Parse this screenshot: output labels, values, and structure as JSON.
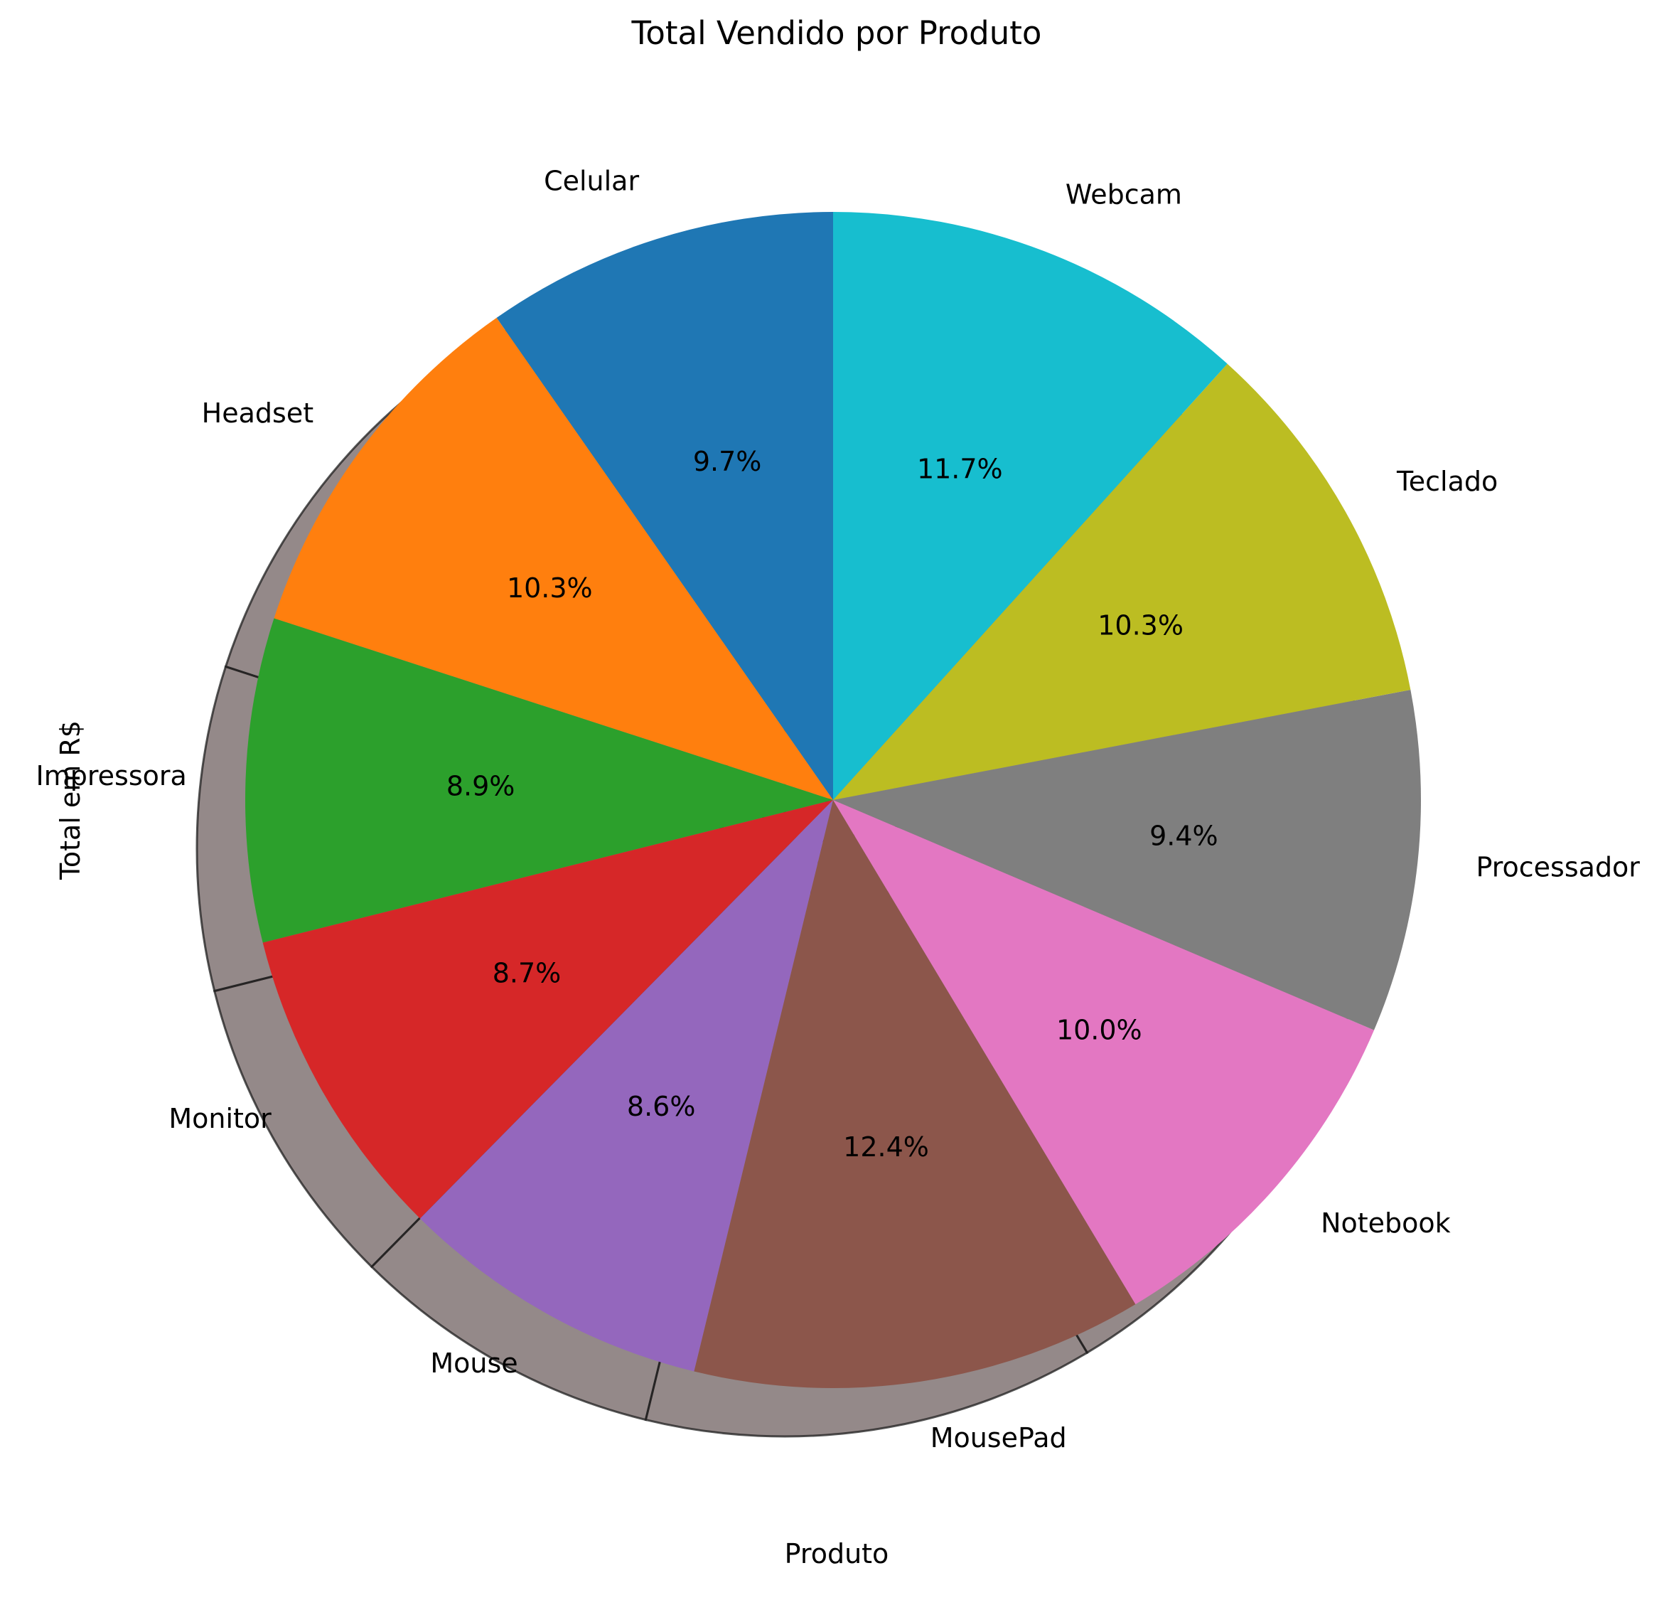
{
  "chart_data": {
    "type": "pie",
    "title": "Total Vendido por Produto",
    "xlabel": "Produto",
    "ylabel": "Total em R$",
    "start_angle_deg": 90,
    "direction": "counterclockwise",
    "shadow": true,
    "legend": "none",
    "slices": [
      {
        "label": "Celular",
        "percent": 9.7,
        "pct_label": "9.7%",
        "color": "#1f77b4"
      },
      {
        "label": "Headset",
        "percent": 10.3,
        "pct_label": "10.3%",
        "color": "#ff7f0e"
      },
      {
        "label": "Impressora",
        "percent": 8.9,
        "pct_label": "8.9%",
        "color": "#2ca02c"
      },
      {
        "label": "Monitor",
        "percent": 8.7,
        "pct_label": "8.7%",
        "color": "#d62728"
      },
      {
        "label": "Mouse",
        "percent": 8.6,
        "pct_label": "8.6%",
        "color": "#9467bd"
      },
      {
        "label": "MousePad",
        "percent": 12.4,
        "pct_label": "12.4%",
        "color": "#8c564b"
      },
      {
        "label": "Notebook",
        "percent": 10.0,
        "pct_label": "10.0%",
        "color": "#e377c2"
      },
      {
        "label": "Processador",
        "percent": 9.4,
        "pct_label": "9.4%",
        "color": "#7f7f7f"
      },
      {
        "label": "Teclado",
        "percent": 10.3,
        "pct_label": "10.3%",
        "color": "#bcbd22"
      },
      {
        "label": "Webcam",
        "percent": 11.7,
        "pct_label": "11.7%",
        "color": "#17becf"
      }
    ]
  }
}
